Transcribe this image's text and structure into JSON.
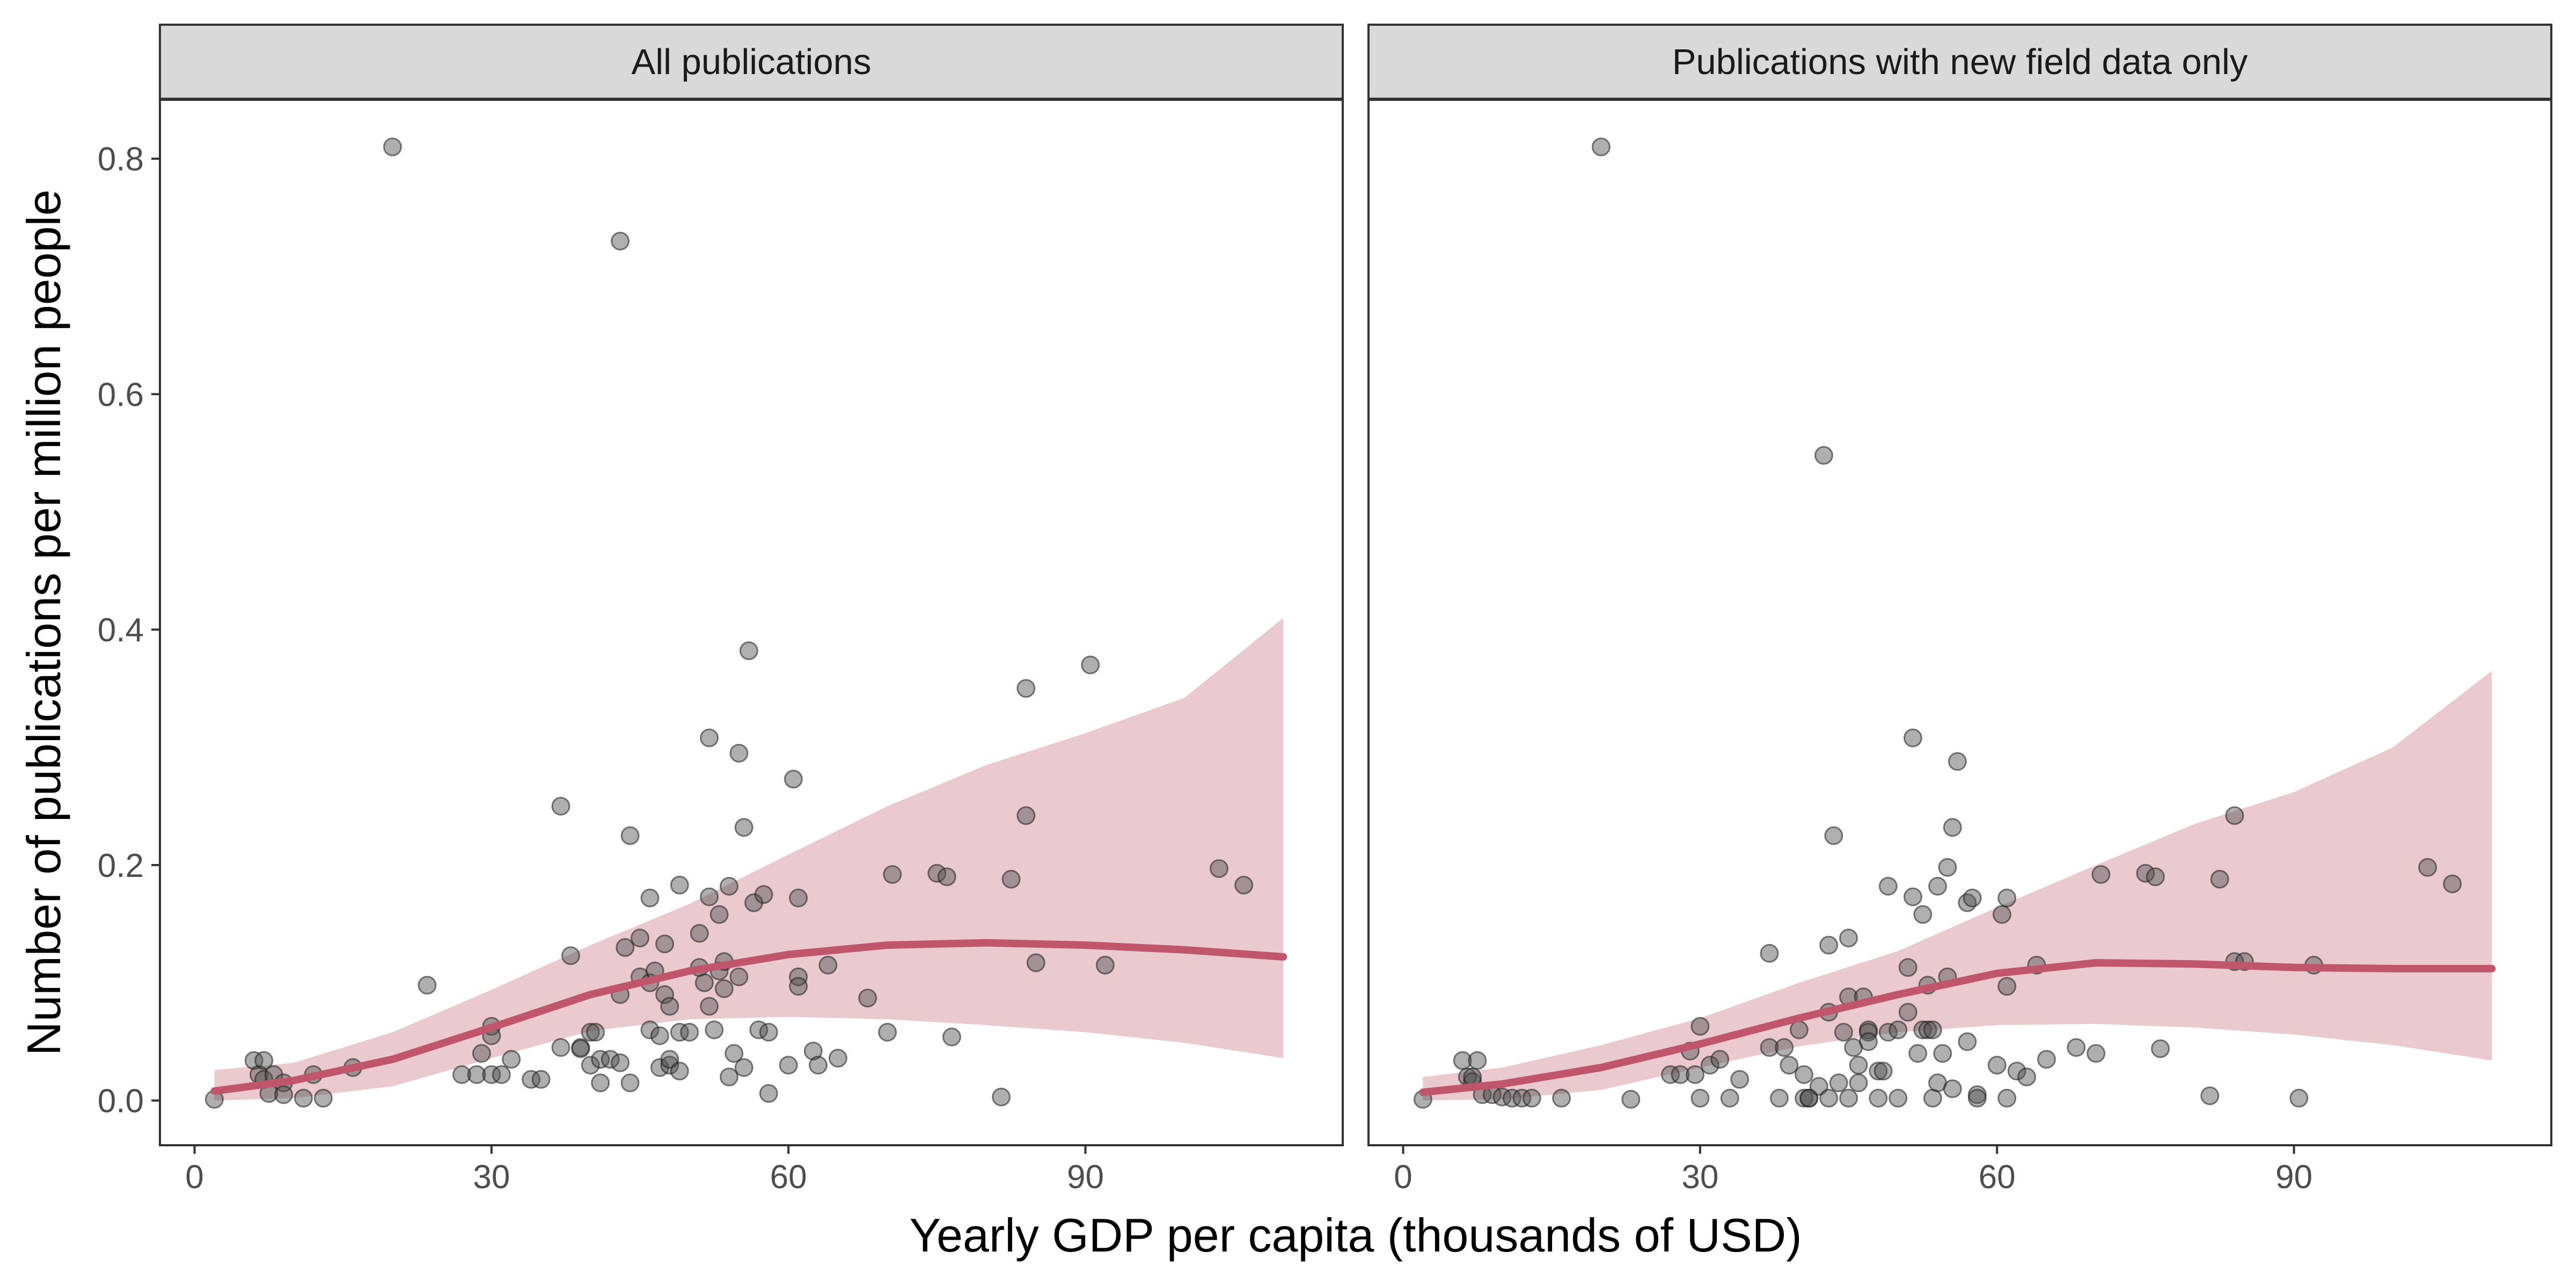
{
  "chart_data": {
    "type": "scatter",
    "xlabel": "Yearly GDP per capita (thousands of USD)",
    "ylabel": "Number of publications per million people",
    "xlim": [
      -3.5,
      116
    ],
    "ylim": [
      -0.038,
      0.85
    ],
    "x_ticks": [
      "0",
      "30",
      "60",
      "90"
    ],
    "y_ticks": [
      "0.0",
      "0.2",
      "0.4",
      "0.6",
      "0.8"
    ],
    "grid": false,
    "colors": {
      "point": "#4d4d4d",
      "trend_line": "#c0566b",
      "ribbon": "#e8c4ca",
      "strip": "#d9d9d9",
      "frame": "#333333"
    },
    "panels": [
      {
        "title": "All publications",
        "points": [
          [
            2,
            0.001
          ],
          [
            6,
            0.034
          ],
          [
            6.5,
            0.022
          ],
          [
            7,
            0.034
          ],
          [
            7,
            0.018
          ],
          [
            7.5,
            0.006
          ],
          [
            8,
            0.022
          ],
          [
            9,
            0.015
          ],
          [
            9,
            0.005
          ],
          [
            11,
            0.002
          ],
          [
            12,
            0.022
          ],
          [
            13,
            0.002
          ],
          [
            16,
            0.028
          ],
          [
            20,
            0.81
          ],
          [
            23.5,
            0.098
          ],
          [
            27,
            0.022
          ],
          [
            28.5,
            0.022
          ],
          [
            30,
            0.022
          ],
          [
            30,
            0.063
          ],
          [
            31,
            0.022
          ],
          [
            30,
            0.055
          ],
          [
            29,
            0.04
          ],
          [
            32,
            0.035
          ],
          [
            34,
            0.018
          ],
          [
            35,
            0.018
          ],
          [
            37,
            0.25
          ],
          [
            37,
            0.045
          ],
          [
            38,
            0.123
          ],
          [
            39,
            0.045
          ],
          [
            39,
            0.044
          ],
          [
            40,
            0.03
          ],
          [
            40,
            0.058
          ],
          [
            40.5,
            0.058
          ],
          [
            41,
            0.015
          ],
          [
            41,
            0.035
          ],
          [
            42,
            0.035
          ],
          [
            43,
            0.73
          ],
          [
            43,
            0.09
          ],
          [
            43,
            0.032
          ],
          [
            43.5,
            0.13
          ],
          [
            44,
            0.225
          ],
          [
            44,
            0.015
          ],
          [
            45,
            0.105
          ],
          [
            45,
            0.138
          ],
          [
            46,
            0.172
          ],
          [
            46,
            0.06
          ],
          [
            46,
            0.1
          ],
          [
            46.5,
            0.11
          ],
          [
            47,
            0.028
          ],
          [
            47,
            0.055
          ],
          [
            47.5,
            0.133
          ],
          [
            47.5,
            0.09
          ],
          [
            48,
            0.08
          ],
          [
            48,
            0.03
          ],
          [
            48,
            0.035
          ],
          [
            49,
            0.025
          ],
          [
            49,
            0.183
          ],
          [
            49,
            0.058
          ],
          [
            50,
            0.058
          ],
          [
            51,
            0.113
          ],
          [
            51,
            0.142
          ],
          [
            51.5,
            0.1
          ],
          [
            52,
            0.308
          ],
          [
            52,
            0.173
          ],
          [
            52,
            0.08
          ],
          [
            52.5,
            0.06
          ],
          [
            53,
            0.158
          ],
          [
            53,
            0.11
          ],
          [
            53.5,
            0.118
          ],
          [
            53.5,
            0.095
          ],
          [
            54,
            0.182
          ],
          [
            54,
            0.02
          ],
          [
            54.5,
            0.04
          ],
          [
            55,
            0.295
          ],
          [
            55,
            0.105
          ],
          [
            55.5,
            0.232
          ],
          [
            55.5,
            0.028
          ],
          [
            56,
            0.382
          ],
          [
            56.5,
            0.168
          ],
          [
            57,
            0.06
          ],
          [
            57.5,
            0.175
          ],
          [
            58,
            0.058
          ],
          [
            58,
            0.006
          ],
          [
            60,
            0.03
          ],
          [
            60.5,
            0.273
          ],
          [
            61,
            0.172
          ],
          [
            61,
            0.105
          ],
          [
            61,
            0.097
          ],
          [
            62.5,
            0.042
          ],
          [
            63,
            0.03
          ],
          [
            64,
            0.115
          ],
          [
            65,
            0.036
          ],
          [
            68,
            0.087
          ],
          [
            70,
            0.058
          ],
          [
            70.5,
            0.192
          ],
          [
            75,
            0.193
          ],
          [
            76,
            0.19
          ],
          [
            76.5,
            0.054
          ],
          [
            81.5,
            0.003
          ],
          [
            82.5,
            0.188
          ],
          [
            84,
            0.242
          ],
          [
            84,
            0.35
          ],
          [
            85,
            0.117
          ],
          [
            90.5,
            0.37
          ],
          [
            92,
            0.115
          ],
          [
            103.5,
            0.197
          ],
          [
            106,
            0.183
          ]
        ],
        "trend": {
          "x": [
            2,
            10,
            20,
            30,
            40,
            50,
            60,
            70,
            80,
            90,
            100,
            110
          ],
          "y": [
            0.008,
            0.017,
            0.035,
            0.062,
            0.09,
            0.11,
            0.124,
            0.132,
            0.134,
            0.132,
            0.128,
            0.122
          ],
          "lower": [
            0.0,
            0.002,
            0.012,
            0.036,
            0.059,
            0.069,
            0.071,
            0.069,
            0.064,
            0.058,
            0.049,
            0.036
          ],
          "upper": [
            0.026,
            0.032,
            0.058,
            0.094,
            0.132,
            0.167,
            0.209,
            0.25,
            0.285,
            0.312,
            0.342,
            0.41
          ]
        }
      },
      {
        "title": "Publications with new field data only",
        "points": [
          [
            2,
            0.001
          ],
          [
            6,
            0.034
          ],
          [
            6.5,
            0.02
          ],
          [
            7,
            0.016
          ],
          [
            7,
            0.02
          ],
          [
            7.5,
            0.034
          ],
          [
            8,
            0.005
          ],
          [
            9,
            0.005
          ],
          [
            10,
            0.003
          ],
          [
            11,
            0.002
          ],
          [
            12,
            0.002
          ],
          [
            13,
            0.002
          ],
          [
            16,
            0.002
          ],
          [
            20,
            0.81
          ],
          [
            23,
            0.001
          ],
          [
            27,
            0.022
          ],
          [
            28,
            0.022
          ],
          [
            29,
            0.042
          ],
          [
            29.5,
            0.022
          ],
          [
            30,
            0.002
          ],
          [
            30,
            0.063
          ],
          [
            31,
            0.03
          ],
          [
            32,
            0.035
          ],
          [
            33,
            0.002
          ],
          [
            34,
            0.018
          ],
          [
            37,
            0.125
          ],
          [
            37,
            0.045
          ],
          [
            38,
            0.002
          ],
          [
            38.5,
            0.045
          ],
          [
            39,
            0.03
          ],
          [
            40,
            0.06
          ],
          [
            40.5,
            0.002
          ],
          [
            40.5,
            0.022
          ],
          [
            41,
            0.002
          ],
          [
            41,
            0.002
          ],
          [
            42,
            0.012
          ],
          [
            42.5,
            0.548
          ],
          [
            43,
            0.075
          ],
          [
            43,
            0.002
          ],
          [
            43,
            0.132
          ],
          [
            43.5,
            0.225
          ],
          [
            44,
            0.015
          ],
          [
            44.5,
            0.058
          ],
          [
            45,
            0.138
          ],
          [
            45,
            0.002
          ],
          [
            45,
            0.088
          ],
          [
            45.5,
            0.045
          ],
          [
            46,
            0.015
          ],
          [
            46,
            0.03
          ],
          [
            46.5,
            0.088
          ],
          [
            47,
            0.06
          ],
          [
            47,
            0.058
          ],
          [
            47,
            0.05
          ],
          [
            48,
            0.002
          ],
          [
            48,
            0.025
          ],
          [
            48.5,
            0.025
          ],
          [
            49,
            0.182
          ],
          [
            49,
            0.058
          ],
          [
            50,
            0.06
          ],
          [
            50,
            0.002
          ],
          [
            51,
            0.113
          ],
          [
            51,
            0.075
          ],
          [
            51.5,
            0.308
          ],
          [
            51.5,
            0.173
          ],
          [
            52,
            0.04
          ],
          [
            52.5,
            0.158
          ],
          [
            52.5,
            0.06
          ],
          [
            53,
            0.06
          ],
          [
            53,
            0.098
          ],
          [
            53.5,
            0.06
          ],
          [
            53.5,
            0.002
          ],
          [
            54,
            0.182
          ],
          [
            54,
            0.015
          ],
          [
            54.5,
            0.04
          ],
          [
            55,
            0.198
          ],
          [
            55,
            0.105
          ],
          [
            55.5,
            0.232
          ],
          [
            55.5,
            0.01
          ],
          [
            56,
            0.288
          ],
          [
            57,
            0.168
          ],
          [
            57,
            0.05
          ],
          [
            57.5,
            0.172
          ],
          [
            58,
            0.005
          ],
          [
            58,
            0.002
          ],
          [
            60,
            0.03
          ],
          [
            60.5,
            0.158
          ],
          [
            61,
            0.172
          ],
          [
            61,
            0.097
          ],
          [
            61,
            0.002
          ],
          [
            62,
            0.025
          ],
          [
            63,
            0.02
          ],
          [
            64,
            0.115
          ],
          [
            65,
            0.035
          ],
          [
            68,
            0.045
          ],
          [
            70,
            0.04
          ],
          [
            70.5,
            0.192
          ],
          [
            75,
            0.193
          ],
          [
            76,
            0.19
          ],
          [
            76.5,
            0.044
          ],
          [
            81.5,
            0.004
          ],
          [
            82.5,
            0.188
          ],
          [
            84,
            0.242
          ],
          [
            84,
            0.118
          ],
          [
            85,
            0.118
          ],
          [
            90.5,
            0.002
          ],
          [
            92,
            0.115
          ],
          [
            103.5,
            0.198
          ],
          [
            106,
            0.184
          ]
        ],
        "trend": {
          "x": [
            2,
            10,
            20,
            30,
            40,
            50,
            60,
            70,
            80,
            90,
            100,
            110
          ],
          "y": [
            0.007,
            0.014,
            0.028,
            0.048,
            0.07,
            0.09,
            0.108,
            0.117,
            0.116,
            0.113,
            0.112,
            0.112
          ],
          "lower": [
            0.0,
            0.001,
            0.009,
            0.028,
            0.046,
            0.058,
            0.064,
            0.065,
            0.062,
            0.056,
            0.047,
            0.034
          ],
          "upper": [
            0.02,
            0.028,
            0.047,
            0.07,
            0.1,
            0.127,
            0.164,
            0.2,
            0.235,
            0.262,
            0.3,
            0.365
          ]
        }
      }
    ]
  }
}
